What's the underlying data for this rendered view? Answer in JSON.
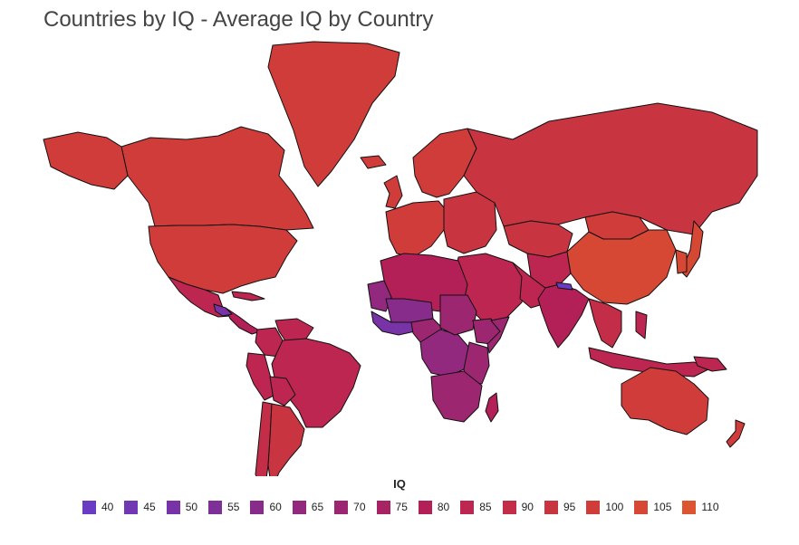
{
  "title": "Countries by IQ - Average IQ by Country",
  "legend": {
    "title": "IQ",
    "items": [
      {
        "label": "40",
        "color": "#6a3cc3"
      },
      {
        "label": "45",
        "color": "#7138b4"
      },
      {
        "label": "50",
        "color": "#7834a6"
      },
      {
        "label": "55",
        "color": "#7f3098"
      },
      {
        "label": "60",
        "color": "#872c8b"
      },
      {
        "label": "65",
        "color": "#92297e"
      },
      {
        "label": "70",
        "color": "#9d2671"
      },
      {
        "label": "75",
        "color": "#a82364"
      },
      {
        "label": "80",
        "color": "#b32058"
      },
      {
        "label": "85",
        "color": "#bd2650"
      },
      {
        "label": "90",
        "color": "#c32d48"
      },
      {
        "label": "95",
        "color": "#c93441"
      },
      {
        "label": "100",
        "color": "#cf3c3a"
      },
      {
        "label": "105",
        "color": "#d64834"
      },
      {
        "label": "110",
        "color": "#dd5530"
      }
    ]
  },
  "regions": [
    {
      "name": "Greenland",
      "iq": 100
    },
    {
      "name": "Canada",
      "iq": 100
    },
    {
      "name": "United States",
      "iq": 98
    },
    {
      "name": "Alaska",
      "iq": 98
    },
    {
      "name": "Mexico",
      "iq": 87
    },
    {
      "name": "Central America",
      "iq": 79
    },
    {
      "name": "Cuba",
      "iq": 85
    },
    {
      "name": "Colombia",
      "iq": 84
    },
    {
      "name": "Venezuela",
      "iq": 84
    },
    {
      "name": "Brazil",
      "iq": 87
    },
    {
      "name": "Peru",
      "iq": 85
    },
    {
      "name": "Bolivia",
      "iq": 87
    },
    {
      "name": "Chile",
      "iq": 90
    },
    {
      "name": "Argentina",
      "iq": 93
    },
    {
      "name": "Iceland",
      "iq": 101
    },
    {
      "name": "United Kingdom",
      "iq": 100
    },
    {
      "name": "Scandinavia",
      "iq": 99
    },
    {
      "name": "Western Europe",
      "iq": 100
    },
    {
      "name": "Eastern Europe",
      "iq": 97
    },
    {
      "name": "Russia",
      "iq": 97
    },
    {
      "name": "Kazakhstan",
      "iq": 94
    },
    {
      "name": "Middle East",
      "iq": 84
    },
    {
      "name": "Iran",
      "iq": 84
    },
    {
      "name": "Central Asia",
      "iq": 87
    },
    {
      "name": "India",
      "iq": 82
    },
    {
      "name": "China",
      "iq": 105
    },
    {
      "name": "Mongolia",
      "iq": 101
    },
    {
      "name": "Japan",
      "iq": 105
    },
    {
      "name": "Korea",
      "iq": 106
    },
    {
      "name": "Southeast Asia",
      "iq": 89
    },
    {
      "name": "Indonesia",
      "iq": 87
    },
    {
      "name": "Philippines",
      "iq": 86
    },
    {
      "name": "Papua New Guinea",
      "iq": 83
    },
    {
      "name": "Australia",
      "iq": 99
    },
    {
      "name": "New Zealand",
      "iq": 99
    },
    {
      "name": "North Africa",
      "iq": 80
    },
    {
      "name": "Mauritania",
      "iq": 64
    },
    {
      "name": "Sahel West",
      "iq": 62
    },
    {
      "name": "West Africa Coast",
      "iq": 52
    },
    {
      "name": "Nigeria",
      "iq": 69
    },
    {
      "name": "Central Africa",
      "iq": 66
    },
    {
      "name": "Sudan",
      "iq": 71
    },
    {
      "name": "Ethiopia",
      "iq": 69
    },
    {
      "name": "Somalia",
      "iq": 68
    },
    {
      "name": "East Africa",
      "iq": 70
    },
    {
      "name": "Southern Africa",
      "iq": 71
    },
    {
      "name": "Madagascar",
      "iq": 82
    },
    {
      "name": "Nepal",
      "iq": 42
    },
    {
      "name": "Guatemala",
      "iq": 48
    }
  ]
}
